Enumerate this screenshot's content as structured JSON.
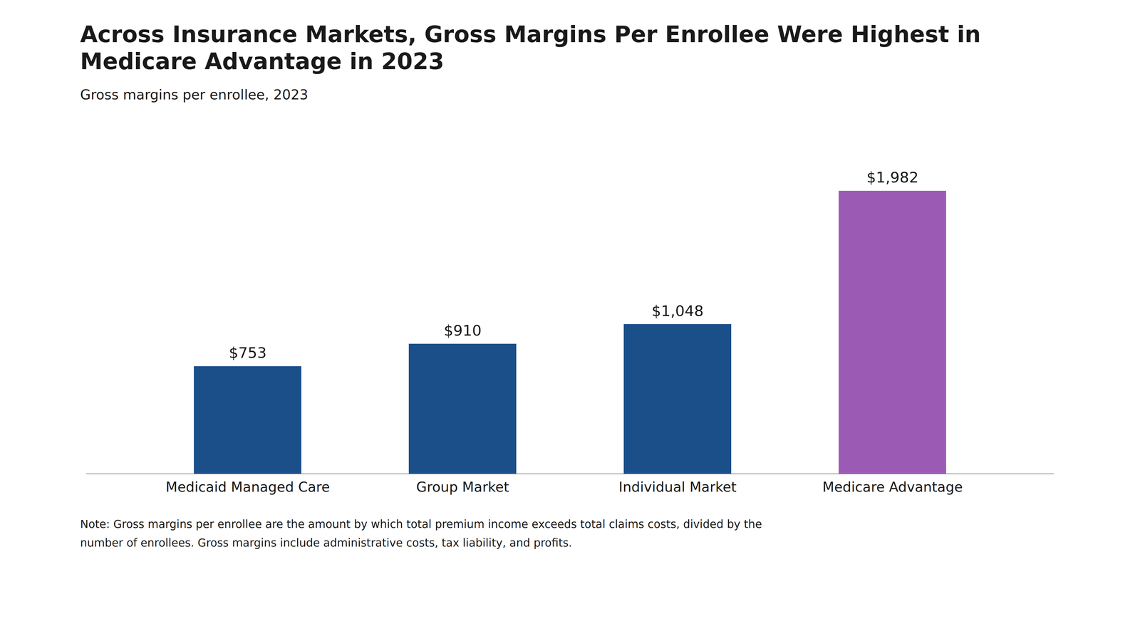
{
  "chart_data": {
    "type": "bar",
    "title": "Across Insurance Markets, Gross Margins Per Enrollee Were Highest in\nMedicare Advantage in 2023",
    "subtitle": "Gross margins per enrollee, 2023",
    "categories": [
      "Medicaid Managed Care",
      "Group Market",
      "Individual Market",
      "Medicare Advantage"
    ],
    "values": [
      753,
      910,
      1048,
      1982
    ],
    "value_labels": [
      "$753",
      "$910",
      "$1,048",
      "$1,982"
    ],
    "colors": [
      "#1a4f8a",
      "#1a4f8a",
      "#1a4f8a",
      "#9b5bb5"
    ],
    "data_labels": true,
    "ylim": [
      0,
      2350
    ],
    "grid": false,
    "tick_labels": "x",
    "note": "Note: Gross margins per enrollee are the amount by which total premium income exceeds total claims costs, divided by the\nnumber of enrollees. Gross margins include administrative costs, tax liability, and profits."
  }
}
